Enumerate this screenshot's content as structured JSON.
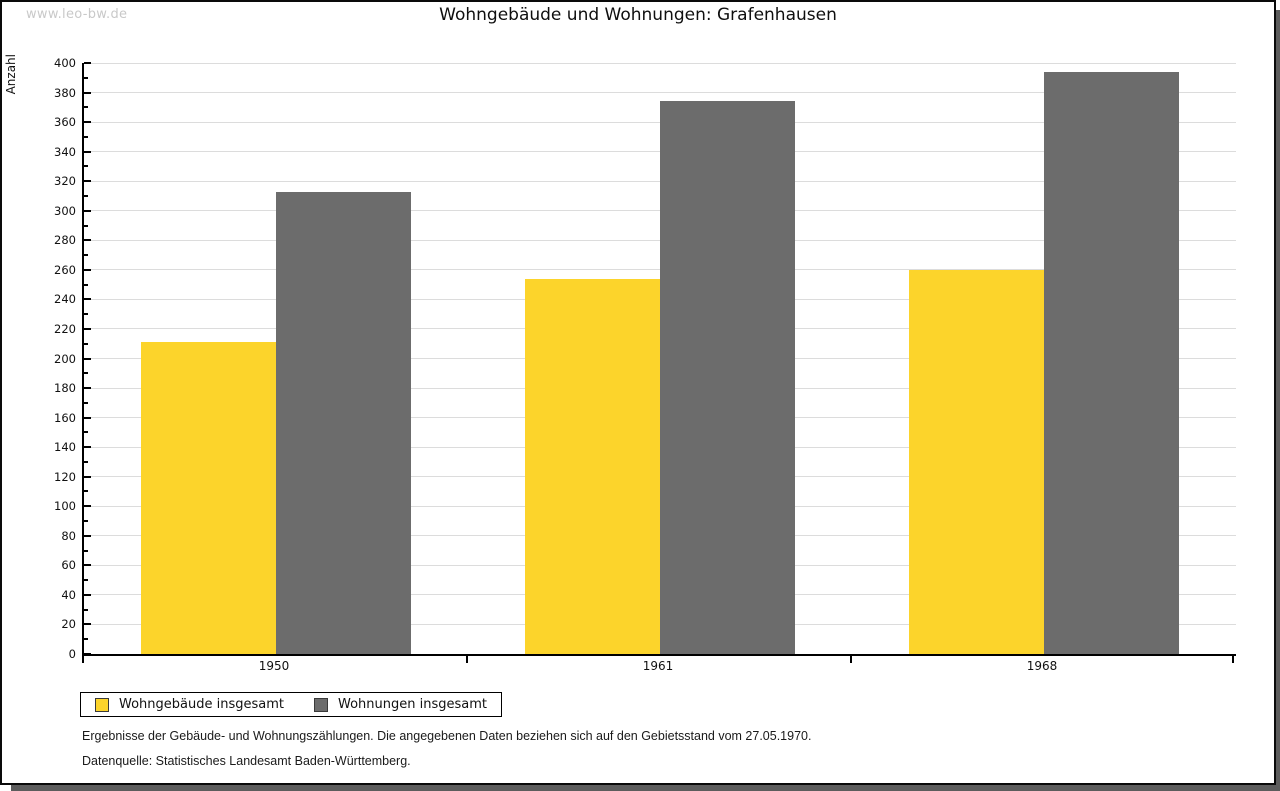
{
  "watermark": "www.leo-bw.de",
  "title": "Wohngebäude und Wohnungen: Grafenhausen",
  "chart_data": {
    "type": "bar",
    "title": "Wohngebäude und Wohnungen: Grafenhausen",
    "xlabel": "",
    "ylabel": "Anzahl",
    "categories": [
      "1950",
      "1961",
      "1968"
    ],
    "series": [
      {
        "name": "Wohngebäude insgesamt",
        "color": "#FCD42B",
        "values": [
          211,
          254,
          260
        ]
      },
      {
        "name": "Wohnungen insgesamt",
        "color": "#6C6C6C",
        "values": [
          313,
          374,
          394
        ]
      }
    ],
    "ylim": [
      0,
      400
    ],
    "ytick_major_step": 20,
    "ytick_minor_step": 10,
    "grid": true,
    "gridline_color": "#dcdcdc",
    "legend_position": "bottom-left"
  },
  "footnotes": [
    "Ergebnisse der Gebäude- und Wohnungszählungen. Die angegebenen Daten beziehen sich auf den Gebietsstand vom 27.05.1970.",
    "Datenquelle: Statistisches Landesamt Baden-Württemberg."
  ],
  "colors": {
    "bar_yellow": "#FCD42B",
    "bar_gray": "#6C6C6C",
    "shadow": "#5c5c5c",
    "watermark": "#c9c9c9"
  }
}
